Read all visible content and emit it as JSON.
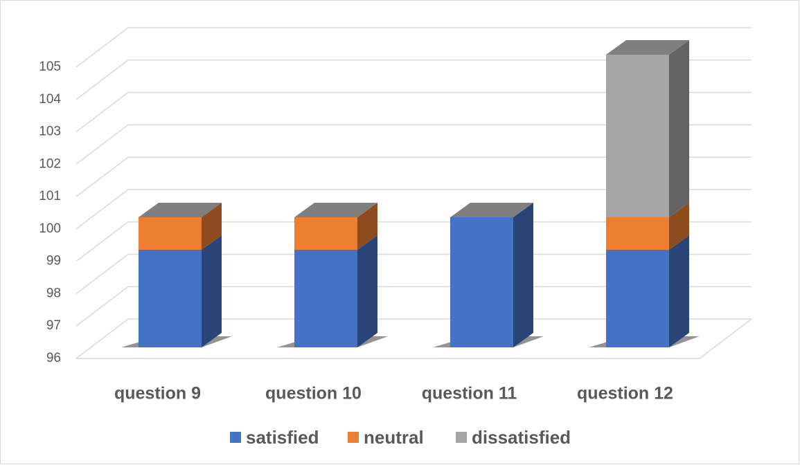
{
  "chart_data": {
    "type": "bar3d-stacked",
    "categories": [
      "question 9",
      "question 10",
      "question 11",
      "question 12"
    ],
    "series": [
      {
        "name": "satisfied",
        "color": "#4472c4",
        "values": [
          99,
          99,
          100,
          99
        ]
      },
      {
        "name": "neutral",
        "color": "#ed7d31",
        "values": [
          1,
          1,
          0,
          1
        ]
      },
      {
        "name": "dissatisfied",
        "color": "#a5a5a5",
        "values": [
          0,
          0,
          0,
          5
        ]
      }
    ],
    "ylim": [
      96,
      105
    ],
    "yticks": [
      96,
      97,
      98,
      99,
      100,
      101,
      102,
      103,
      104,
      105
    ],
    "grid": true
  }
}
